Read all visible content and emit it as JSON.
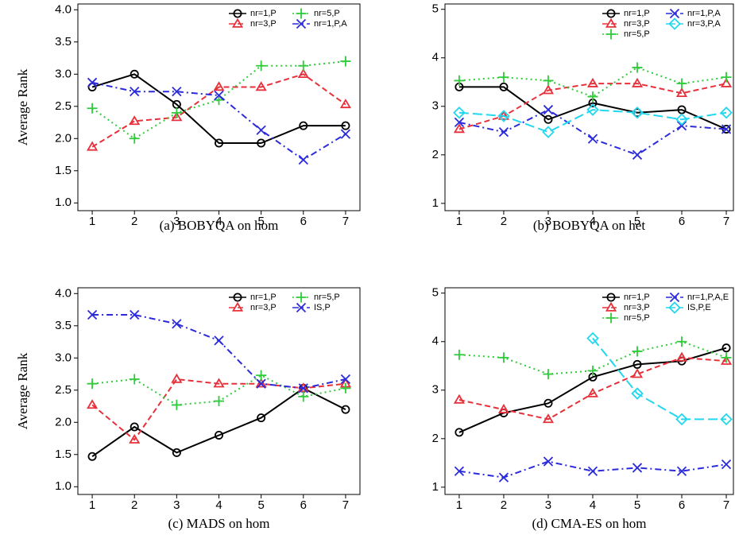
{
  "chart_data": [
    {
      "type": "line",
      "title": "(a) BOBYQA on hom",
      "ylabel": "Average Rank",
      "x": [
        1,
        2,
        3,
        4,
        5,
        6,
        7
      ],
      "xlim": [
        0.66,
        7.34
      ],
      "xticks": [
        1,
        2,
        3,
        4,
        5,
        6,
        7
      ],
      "ylim": [
        0.88,
        4.09
      ],
      "yticks": [
        {
          "value": 1,
          "label": "1.0"
        },
        1.5,
        {
          "value": 2,
          "label": "2.0"
        },
        2.5,
        {
          "value": 3,
          "label": "3.0"
        },
        3.5,
        {
          "value": 4,
          "label": "4.0"
        }
      ],
      "legend": "top-right",
      "series": [
        {
          "name": "nr=1,P",
          "color": "#000000",
          "marker": "circle",
          "linestyle": "solid",
          "values": [
            2.8,
            3.0,
            2.53,
            1.93,
            1.93,
            2.2,
            2.2
          ]
        },
        {
          "name": "nr=3,P",
          "color": "#e8303a",
          "marker": "triangle",
          "linestyle": "dashed",
          "values": [
            1.87,
            2.27,
            2.33,
            2.8,
            2.8,
            3.0,
            2.53
          ]
        },
        {
          "name": "nr=5,P",
          "color": "#2fcb3a",
          "marker": "plus",
          "linestyle": "dotted",
          "values": [
            2.47,
            2.0,
            2.4,
            2.6,
            3.13,
            3.13,
            3.2
          ]
        },
        {
          "name": "nr=1,P,A",
          "color": "#2b2bdb",
          "marker": "cross",
          "linestyle": "dashdot",
          "values": [
            2.87,
            2.73,
            2.73,
            2.67,
            2.13,
            1.67,
            2.07
          ]
        }
      ]
    },
    {
      "type": "line",
      "title": "(b) BOBYQA on het",
      "x": [
        1,
        2,
        3,
        4,
        5,
        6,
        7
      ],
      "xlim": [
        0.68,
        7.16
      ],
      "xticks": [
        1,
        2,
        3,
        4,
        5,
        6,
        7
      ],
      "ylim": [
        0.85,
        5.11
      ],
      "yticks": [
        1,
        2,
        3,
        4,
        5
      ],
      "legend": "top-right",
      "series": [
        {
          "name": "nr=1,P",
          "color": "#000000",
          "marker": "circle",
          "linestyle": "solid",
          "values": [
            3.4,
            3.4,
            2.73,
            3.07,
            2.87,
            2.93,
            2.53
          ]
        },
        {
          "name": "nr=3,P",
          "color": "#e8303a",
          "marker": "triangle",
          "linestyle": "dashed",
          "values": [
            2.53,
            2.8,
            3.33,
            3.47,
            3.47,
            3.27,
            3.47
          ]
        },
        {
          "name": "nr=5,P",
          "color": "#2fcb3a",
          "marker": "plus",
          "linestyle": "dotted",
          "values": [
            3.53,
            3.6,
            3.53,
            3.2,
            3.8,
            3.47,
            3.6
          ]
        },
        {
          "name": "nr=1,P,A",
          "color": "#2b2bdb",
          "marker": "cross",
          "linestyle": "dashdot",
          "values": [
            2.67,
            2.47,
            2.93,
            2.33,
            2.0,
            2.6,
            2.53
          ]
        },
        {
          "name": "nr=3,P,A",
          "color": "#22d8ee",
          "marker": "diamond",
          "linestyle": "longdash",
          "values": [
            2.87,
            2.8,
            2.47,
            2.93,
            2.87,
            2.73,
            2.87
          ]
        }
      ]
    },
    {
      "type": "line",
      "title": "(c) MADS on hom",
      "ylabel": "Average Rank",
      "x": [
        1,
        2,
        3,
        4,
        5,
        6,
        7
      ],
      "xlim": [
        0.66,
        7.34
      ],
      "xticks": [
        1,
        2,
        3,
        4,
        5,
        6,
        7
      ],
      "ylim": [
        0.88,
        4.09
      ],
      "yticks": [
        {
          "value": 1,
          "label": "1.0"
        },
        1.5,
        {
          "value": 2,
          "label": "2.0"
        },
        2.5,
        {
          "value": 3,
          "label": "3.0"
        },
        3.5,
        {
          "value": 4,
          "label": "4.0"
        }
      ],
      "legend": "top-right",
      "series": [
        {
          "name": "nr=1,P",
          "color": "#000000",
          "marker": "circle",
          "linestyle": "solid",
          "values": [
            1.47,
            1.93,
            1.53,
            1.8,
            2.07,
            2.53,
            2.2
          ]
        },
        {
          "name": "nr=3,P",
          "color": "#e8303a",
          "marker": "triangle",
          "linestyle": "dashed",
          "values": [
            2.27,
            1.73,
            2.67,
            2.6,
            2.6,
            2.53,
            2.6
          ]
        },
        {
          "name": "nr=5,P",
          "color": "#2fcb3a",
          "marker": "plus",
          "linestyle": "dotted",
          "values": [
            2.6,
            2.67,
            2.27,
            2.33,
            2.73,
            2.4,
            2.53
          ]
        },
        {
          "name": "IS,P",
          "color": "#2b2bdb",
          "marker": "cross",
          "linestyle": "dashdot",
          "values": [
            3.67,
            3.67,
            3.53,
            3.27,
            2.6,
            2.53,
            2.67
          ]
        }
      ]
    },
    {
      "type": "line",
      "title": "(d) CMA-ES on hom",
      "x": [
        1,
        2,
        3,
        4,
        5,
        6,
        7
      ],
      "xlim": [
        0.68,
        7.16
      ],
      "xticks": [
        1,
        2,
        3,
        4,
        5,
        6,
        7
      ],
      "ylim": [
        0.85,
        5.11
      ],
      "yticks": [
        1,
        2,
        3,
        4,
        5
      ],
      "legend": "top-right",
      "series": [
        {
          "name": "nr=1,P",
          "color": "#000000",
          "marker": "circle",
          "linestyle": "solid",
          "values": [
            2.13,
            2.53,
            2.73,
            3.27,
            3.53,
            3.6,
            3.87
          ]
        },
        {
          "name": "nr=3,P",
          "color": "#e8303a",
          "marker": "triangle",
          "linestyle": "dashed",
          "values": [
            2.8,
            2.6,
            2.4,
            2.93,
            3.33,
            3.67,
            3.6
          ]
        },
        {
          "name": "nr=5,P",
          "color": "#2fcb3a",
          "marker": "plus",
          "linestyle": "dotted",
          "values": [
            3.73,
            3.67,
            3.33,
            3.4,
            3.8,
            4.0,
            3.67
          ]
        },
        {
          "name": "nr=1,P,A,E",
          "color": "#2b2bdb",
          "marker": "cross",
          "linestyle": "dashdot",
          "values": [
            1.33,
            1.2,
            1.53,
            1.33,
            1.4,
            1.33,
            1.47
          ]
        },
        {
          "name": "IS,P,E",
          "color": "#22d8ee",
          "marker": "diamond",
          "linestyle": "longdash",
          "values": [
            null,
            null,
            null,
            4.07,
            2.93,
            2.4,
            2.4
          ]
        }
      ]
    }
  ]
}
